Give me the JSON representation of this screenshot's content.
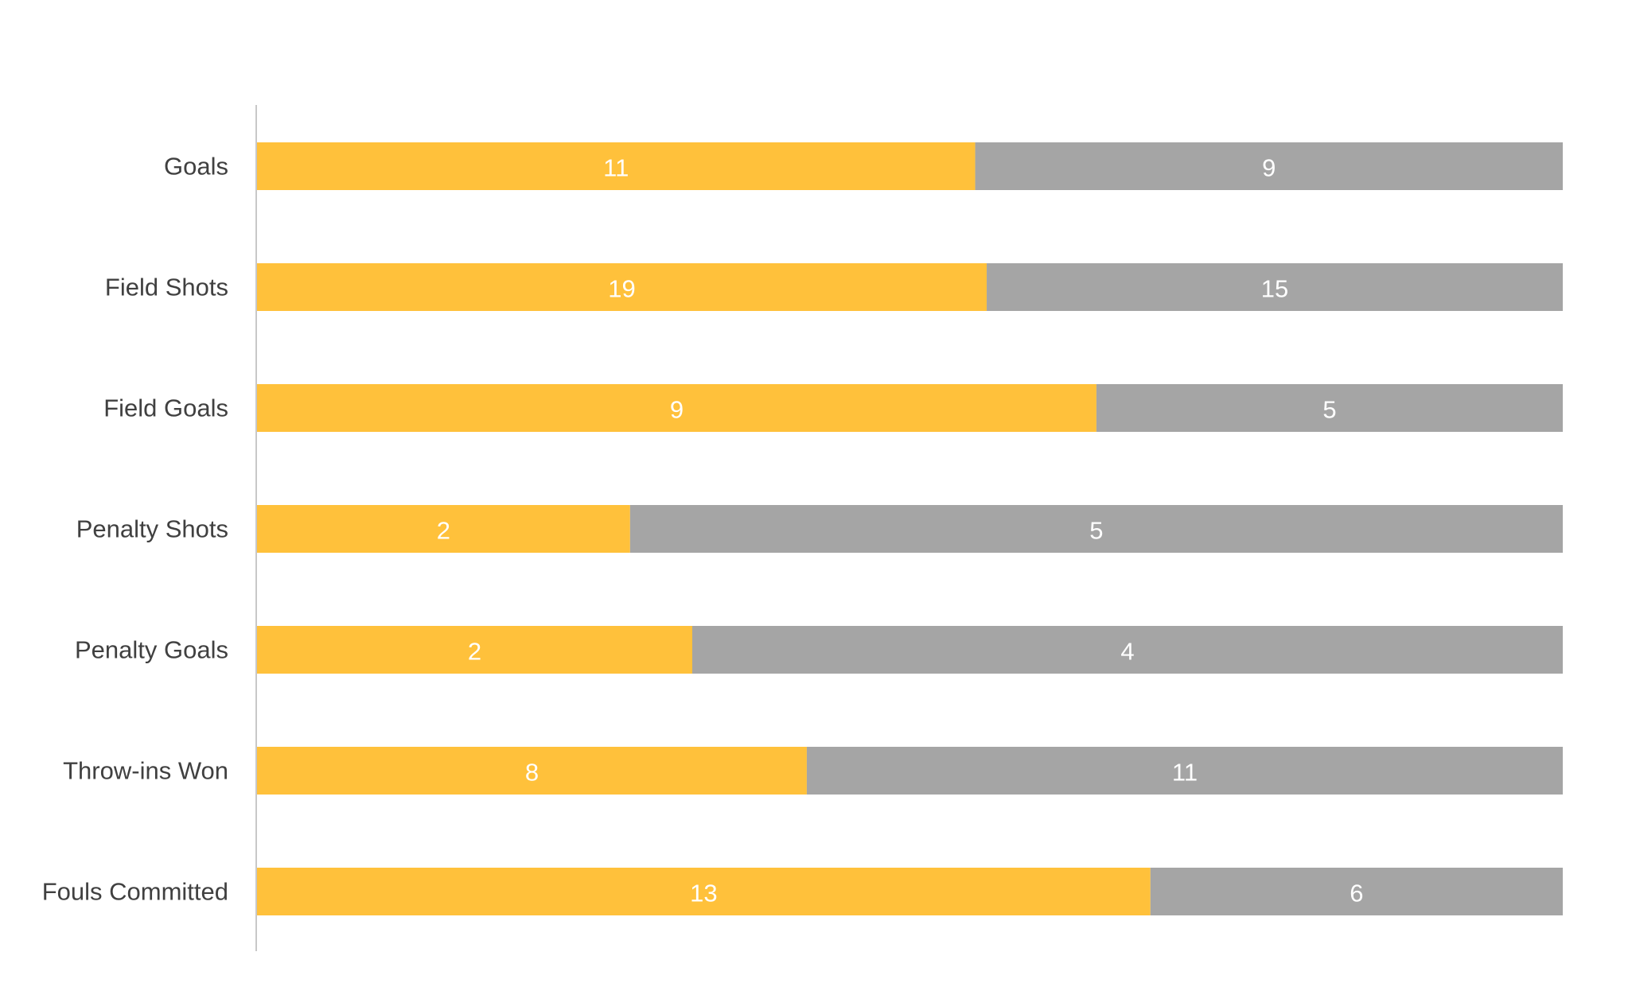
{
  "chart_data": {
    "type": "bar",
    "orientation": "horizontal",
    "stacking": "percent",
    "categories": [
      "Goals",
      "Field Shots",
      "Field Goals",
      "Penalty Shots",
      "Penalty Goals",
      "Throw-ins Won",
      "Fouls Committed"
    ],
    "series": [
      {
        "values": [
          11,
          19,
          9,
          2,
          2,
          8,
          13
        ],
        "color": "#FFC13B"
      },
      {
        "values": [
          9,
          15,
          5,
          5,
          4,
          11,
          6
        ],
        "color": "#A5A5A5"
      }
    ],
    "title": "",
    "xlabel": "",
    "ylabel": "",
    "grid": false,
    "legend": "none",
    "data_labels": true
  }
}
